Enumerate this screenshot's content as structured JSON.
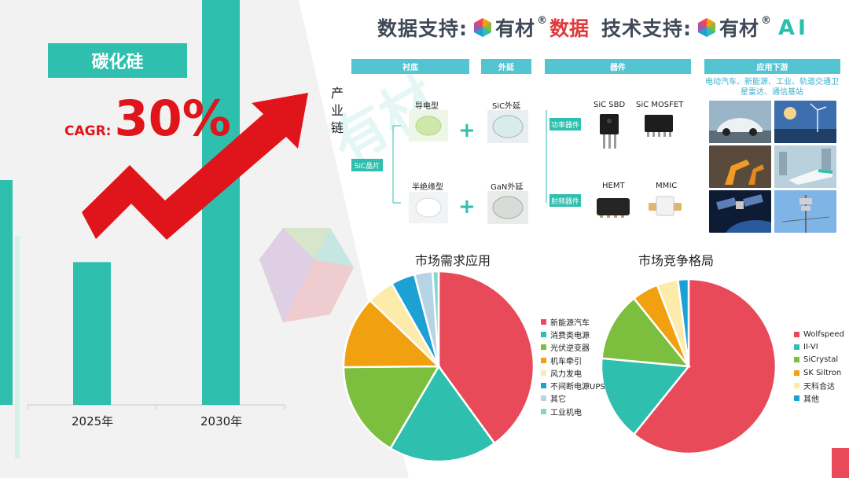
{
  "header": {
    "data_support_label": "数据支持:",
    "brand1_name_a": "有材",
    "brand1_reg": "®",
    "brand1_name_b": "数据",
    "tech_support_label": "技术支持:",
    "brand2_name": "有材",
    "brand2_reg": "®",
    "brand2_ai": "AI"
  },
  "title": "碳化硅",
  "cagr": {
    "label": "CAGR:",
    "value": "30%"
  },
  "industry_chain": {
    "side_label": "产业链",
    "sections": [
      "衬底",
      "外延",
      "器件",
      "应用下游"
    ],
    "wafer_label": "SiC晶片",
    "substrate_types": [
      "导电型",
      "半绝缘型"
    ],
    "epitaxy_types": [
      "SiC外延",
      "GaN外延"
    ],
    "device_groups": [
      "功率器件",
      "射频器件"
    ],
    "devices": [
      "SiC SBD",
      "SiC MOSFET",
      "HEMT",
      "MMIC"
    ],
    "downstream_text": "电动汽车、新能源、工业、轨道交通卫星雷达、通信基站"
  },
  "colors": {
    "teal": "#2fbfae",
    "red": "#e0141b",
    "header_band": "#54c5d0"
  },
  "chart_data": [
    {
      "type": "bar",
      "categories": [
        "2025年",
        "2030年"
      ],
      "values": [
        1,
        3.71
      ],
      "annotation": "CAGR: 30%",
      "color": "#2fbfae"
    },
    {
      "type": "pie",
      "title": "市场需求应用",
      "labels": [
        "新能源汽车",
        "消费类电源",
        "光伏逆变器",
        "机车牵引",
        "风力发电",
        "不间断电源UPS",
        "其它",
        "工业机电"
      ],
      "values": [
        39,
        18,
        16,
        12,
        4.5,
        4,
        3,
        1
      ],
      "colors": [
        "#e84a5a",
        "#2fbfae",
        "#7cbf3f",
        "#f1a00f",
        "#fcebaa",
        "#1da1d4",
        "#b7d3e6",
        "#85d8c9"
      ]
    },
    {
      "type": "pie",
      "title": "市场竞争格局",
      "labels": [
        "Wolfspeed",
        "II-VI",
        "SiCrystal",
        "SK Siltron",
        "天科合达",
        "其他"
      ],
      "values": [
        62,
        16,
        13,
        5,
        4,
        2
      ],
      "colors": [
        "#e84a5a",
        "#2fbfae",
        "#7cbf3f",
        "#f1a00f",
        "#fcebaa",
        "#1da1d4"
      ]
    }
  ]
}
